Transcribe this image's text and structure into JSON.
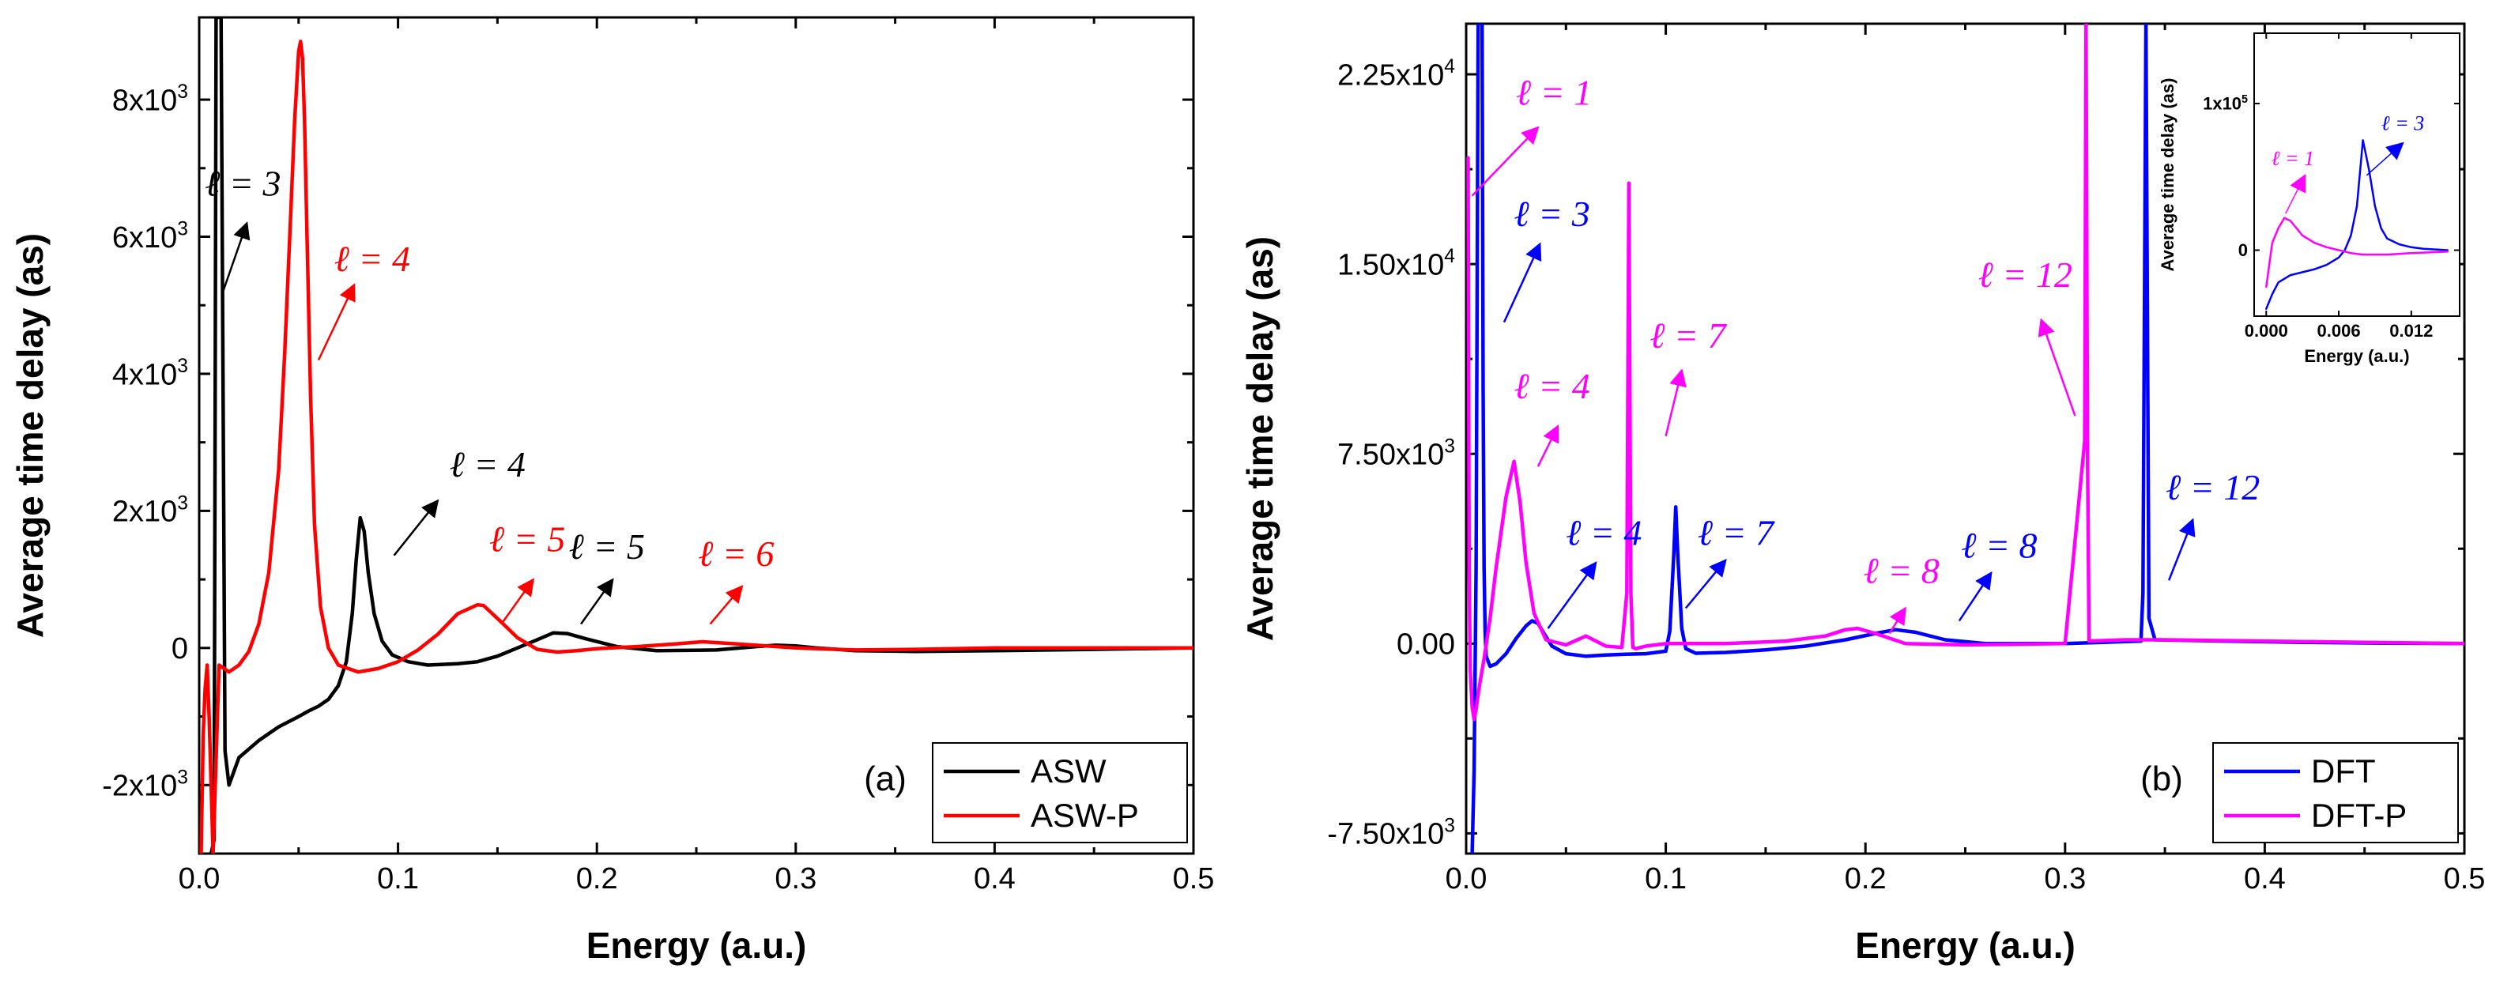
{
  "chart_data": [
    {
      "panel": "a",
      "panel_label": "(a)",
      "type": "line",
      "xlabel": "Energy (a.u.)",
      "ylabel": "Average time delay (as)",
      "xlim": [
        0,
        0.5
      ],
      "ylim": [
        -3000,
        9200
      ],
      "xticks": [
        0.0,
        0.1,
        0.2,
        0.3,
        0.4,
        0.5
      ],
      "xtick_labels": [
        "0.0",
        "0.1",
        "0.2",
        "0.3",
        "0.4",
        "0.5"
      ],
      "yticks": [
        -2000,
        0,
        2000,
        4000,
        6000,
        8000
      ],
      "ytick_labels": [
        "-2x10³",
        "0",
        "2x10³",
        "4x10³",
        "6x10³",
        "8x10³"
      ],
      "legend_position": "bottom-right",
      "series": [
        {
          "name": "ASW",
          "color": "#000000",
          "x": [
            0.006,
            0.0075,
            0.0085,
            0.0095,
            0.011,
            0.013,
            0.015,
            0.02,
            0.03,
            0.04,
            0.05,
            0.055,
            0.06,
            0.065,
            0.07,
            0.074,
            0.077,
            0.079,
            0.081,
            0.083,
            0.085,
            0.088,
            0.092,
            0.097,
            0.105,
            0.115,
            0.13,
            0.14,
            0.15,
            0.16,
            0.17,
            0.178,
            0.185,
            0.195,
            0.21,
            0.23,
            0.26,
            0.28,
            0.29,
            0.3,
            0.31,
            0.33,
            0.36,
            0.4,
            0.45,
            0.5
          ],
          "y": [
            -3000,
            -2800,
            9200,
            9200,
            9200,
            -1500,
            -2000,
            -1600,
            -1350,
            -1150,
            -1000,
            -920,
            -850,
            -750,
            -550,
            -200,
            500,
            1300,
            1900,
            1700,
            1100,
            500,
            100,
            -100,
            -200,
            -250,
            -230,
            -200,
            -120,
            0,
            120,
            220,
            210,
            130,
            20,
            -40,
            -30,
            20,
            40,
            30,
            0,
            -40,
            -50,
            -40,
            -20,
            0
          ]
        },
        {
          "name": "ASW-P",
          "color": "#ff0000",
          "x": [
            0.001,
            0.002,
            0.003,
            0.004,
            0.005,
            0.006,
            0.007,
            0.01,
            0.015,
            0.02,
            0.025,
            0.03,
            0.035,
            0.04,
            0.043,
            0.046,
            0.048,
            0.05,
            0.051,
            0.052,
            0.053,
            0.054,
            0.056,
            0.058,
            0.061,
            0.065,
            0.07,
            0.08,
            0.09,
            0.1,
            0.11,
            0.12,
            0.13,
            0.14,
            0.143,
            0.15,
            0.16,
            0.17,
            0.18,
            0.19,
            0.2,
            0.22,
            0.24,
            0.253,
            0.27,
            0.3,
            0.33,
            0.36,
            0.4,
            0.45,
            0.5
          ],
          "y": [
            -3000,
            -1300,
            -600,
            -250,
            -1000,
            -2000,
            -3000,
            -250,
            -350,
            -250,
            -50,
            350,
            1100,
            2600,
            4300,
            6300,
            7700,
            8700,
            8850,
            8600,
            7700,
            6300,
            3700,
            1800,
            600,
            0,
            -250,
            -350,
            -300,
            -200,
            -30,
            200,
            500,
            630,
            620,
            430,
            150,
            -20,
            -60,
            -40,
            -10,
            20,
            60,
            90,
            60,
            0,
            -30,
            -20,
            0,
            0,
            0
          ]
        }
      ],
      "annotations": [
        {
          "text": "ℓ = 3",
          "color": "#000000",
          "x": 0.022,
          "y": 6600,
          "arrow_from": [
            0.012,
            5200
          ],
          "arrow_to": [
            0.024,
            6200
          ]
        },
        {
          "text": "ℓ = 4",
          "color": "#ff0000",
          "x": 0.087,
          "y": 5500,
          "arrow_from": [
            0.06,
            4200
          ],
          "arrow_to": [
            0.078,
            5300
          ]
        },
        {
          "text": "ℓ = 4",
          "color": "#000000",
          "x": 0.145,
          "y": 2500,
          "arrow_from": [
            0.098,
            1350
          ],
          "arrow_to": [
            0.12,
            2150
          ]
        },
        {
          "text": "ℓ = 5",
          "color": "#ff0000",
          "x": 0.165,
          "y": 1410,
          "arrow_from": [
            0.152,
            350
          ],
          "arrow_to": [
            0.168,
            1000
          ]
        },
        {
          "text": "ℓ = 5",
          "color": "#000000",
          "x": 0.205,
          "y": 1300,
          "arrow_from": [
            0.192,
            350
          ],
          "arrow_to": [
            0.208,
            1000
          ]
        },
        {
          "text": "ℓ = 6",
          "color": "#ff0000",
          "x": 0.27,
          "y": 1200,
          "arrow_from": [
            0.257,
            350
          ],
          "arrow_to": [
            0.273,
            900
          ]
        }
      ]
    },
    {
      "panel": "b",
      "panel_label": "(b)",
      "type": "line",
      "xlabel": "Energy (a.u.)",
      "ylabel": "Average time delay (as)",
      "xlim": [
        0,
        0.5
      ],
      "ylim": [
        -8300,
        24500
      ],
      "xticks": [
        0.0,
        0.1,
        0.2,
        0.3,
        0.4,
        0.5
      ],
      "xtick_labels": [
        "0.0",
        "0.1",
        "0.2",
        "0.3",
        "0.4",
        "0.5"
      ],
      "yticks": [
        -7500,
        0,
        7500,
        15000,
        22500
      ],
      "ytick_labels": [
        "-7.50x10³",
        "0.00",
        "7.50x10³",
        "1.50x10⁴",
        "2.25x10⁴"
      ],
      "legend_position": "bottom-right",
      "series": [
        {
          "name": "DFT",
          "color": "#0000ff",
          "x": [
            0.003,
            0.004,
            0.005,
            0.006,
            0.0065,
            0.007,
            0.008,
            0.0085,
            0.009,
            0.0095,
            0.01,
            0.012,
            0.015,
            0.02,
            0.025,
            0.03,
            0.033,
            0.036,
            0.039,
            0.043,
            0.05,
            0.06,
            0.07,
            0.08,
            0.09,
            0.1,
            0.102,
            0.104,
            0.105,
            0.106,
            0.108,
            0.11,
            0.115,
            0.13,
            0.15,
            0.17,
            0.19,
            0.205,
            0.215,
            0.225,
            0.24,
            0.26,
            0.3,
            0.338,
            0.339,
            0.3405,
            0.342,
            0.345,
            0.38,
            0.42,
            0.46,
            0.5
          ],
          "y": [
            -8300,
            -5000,
            3000,
            24500,
            24500,
            24500,
            24500,
            10000,
            3000,
            500,
            -500,
            -900,
            -800,
            -400,
            200,
            700,
            900,
            800,
            400,
            -100,
            -400,
            -500,
            -450,
            -420,
            -400,
            -300,
            500,
            3500,
            5400,
            3500,
            600,
            -200,
            -380,
            -350,
            -250,
            -100,
            150,
            400,
            550,
            450,
            150,
            0,
            0,
            100,
            2000,
            24500,
            1000,
            150,
            100,
            50,
            20,
            0
          ]
        },
        {
          "name": "DFT-P",
          "color": "#ff00ff",
          "x": [
            0.001,
            0.0015,
            0.002,
            0.003,
            0.004,
            0.005,
            0.006,
            0.007,
            0.009,
            0.012,
            0.015,
            0.02,
            0.024,
            0.027,
            0.03,
            0.034,
            0.04,
            0.05,
            0.06,
            0.07,
            0.078,
            0.0805,
            0.0815,
            0.0825,
            0.0835,
            0.085,
            0.09,
            0.1,
            0.13,
            0.16,
            0.18,
            0.19,
            0.196,
            0.205,
            0.22,
            0.25,
            0.3,
            0.3098,
            0.3105,
            0.3112,
            0.312,
            0.33,
            0.35,
            0.4,
            0.45,
            0.5
          ],
          "y": [
            19200,
            3000,
            -1000,
            -2500,
            -3000,
            -2600,
            -2000,
            -1500,
            -600,
            1000,
            3000,
            5800,
            7200,
            5600,
            3200,
            1200,
            150,
            -50,
            300,
            -100,
            -150,
            2000,
            18200,
            2000,
            -150,
            -200,
            -100,
            0,
            0,
            100,
            300,
            550,
            600,
            400,
            0,
            -50,
            0,
            8000,
            24500,
            8000,
            100,
            150,
            150,
            100,
            50,
            0
          ]
        }
      ],
      "annotations": [
        {
          "text": "ℓ = 1",
          "color": "#ff00ff",
          "x": 0.044,
          "y": 21300,
          "arrow_from": [
            0.003,
            17700
          ],
          "arrow_to": [
            0.036,
            20400
          ]
        },
        {
          "text": "ℓ = 3",
          "color": "#0000ff",
          "x": 0.043,
          "y": 16500,
          "arrow_from": [
            0.019,
            12700
          ],
          "arrow_to": [
            0.037,
            15800
          ]
        },
        {
          "text": "ℓ = 7",
          "color": "#ff00ff",
          "x": 0.111,
          "y": 11700,
          "arrow_from": [
            0.1,
            8200
          ],
          "arrow_to": [
            0.108,
            10800
          ]
        },
        {
          "text": "ℓ = 4",
          "color": "#ff00ff",
          "x": 0.043,
          "y": 9700,
          "arrow_from": [
            0.036,
            7000
          ],
          "arrow_to": [
            0.046,
            8600
          ]
        },
        {
          "text": "ℓ = 12",
          "color": "#ff00ff",
          "x": 0.28,
          "y": 14100,
          "arrow_from": [
            0.305,
            9000
          ],
          "arrow_to": [
            0.288,
            12800
          ]
        },
        {
          "text": "ℓ = 12",
          "color": "#0000ff",
          "x": 0.374,
          "y": 5700,
          "arrow_from": [
            0.352,
            2500
          ],
          "arrow_to": [
            0.364,
            4900
          ]
        },
        {
          "text": "ℓ = 4",
          "color": "#0000ff",
          "x": 0.069,
          "y": 3900,
          "arrow_from": [
            0.041,
            600
          ],
          "arrow_to": [
            0.065,
            3200
          ]
        },
        {
          "text": "ℓ = 7",
          "color": "#0000ff",
          "x": 0.135,
          "y": 3900,
          "arrow_from": [
            0.11,
            1400
          ],
          "arrow_to": [
            0.13,
            3300
          ]
        },
        {
          "text": "ℓ = 8",
          "color": "#ff00ff",
          "x": 0.218,
          "y": 2400,
          "arrow_from": [
            0.212,
            400
          ],
          "arrow_to": [
            0.22,
            1400
          ]
        },
        {
          "text": "ℓ = 8",
          "color": "#0000ff",
          "x": 0.267,
          "y": 3400,
          "arrow_from": [
            0.247,
            900
          ],
          "arrow_to": [
            0.263,
            2800
          ]
        }
      ],
      "inset": {
        "xlabel": "Energy (a.u.)",
        "ylabel": "Average time delay (as)",
        "xlim": [
          -0.001,
          0.016
        ],
        "ylim": [
          -45000,
          148000
        ],
        "xticks": [
          0.0,
          0.006,
          0.012
        ],
        "xtick_labels": [
          "0.000",
          "0.006",
          "0.012"
        ],
        "yticks": [
          0,
          100000
        ],
        "ytick_labels": [
          "0",
          "1x10⁵"
        ],
        "series": [
          {
            "name": "DFT",
            "color": "#0000ff",
            "x": [
              0.0,
              0.0005,
              0.001,
              0.002,
              0.003,
              0.004,
              0.005,
              0.006,
              0.0065,
              0.007,
              0.0075,
              0.008,
              0.0085,
              0.009,
              0.0095,
              0.01,
              0.011,
              0.012,
              0.013,
              0.014,
              0.015
            ],
            "y": [
              -40000,
              -30000,
              -22000,
              -17000,
              -15000,
              -13000,
              -10000,
              -5000,
              0,
              10000,
              30000,
              75000,
              55000,
              30000,
              15000,
              8000,
              4000,
              2000,
              1000,
              500,
              0
            ]
          },
          {
            "name": "DFT-P",
            "color": "#ff00ff",
            "x": [
              0.0,
              0.0005,
              0.001,
              0.0015,
              0.002,
              0.003,
              0.004,
              0.005,
              0.006,
              0.007,
              0.008,
              0.01,
              0.012,
              0.015
            ],
            "y": [
              -25000,
              5000,
              15000,
              22000,
              20000,
              10000,
              5000,
              2000,
              0,
              -2000,
              -3000,
              -3000,
              -2000,
              -1000
            ]
          }
        ],
        "annotations": [
          {
            "text": "ℓ = 1",
            "color": "#ff00ff",
            "x": 0.0022,
            "y": 58000,
            "arrow_from": [
              0.0016,
              25000
            ],
            "arrow_to": [
              0.0032,
              51000
            ]
          },
          {
            "text": "ℓ = 3",
            "color": "#0000ff",
            "x": 0.0113,
            "y": 82000,
            "arrow_from": [
              0.0083,
              51000
            ],
            "arrow_to": [
              0.0113,
              73000
            ]
          }
        ]
      }
    }
  ]
}
